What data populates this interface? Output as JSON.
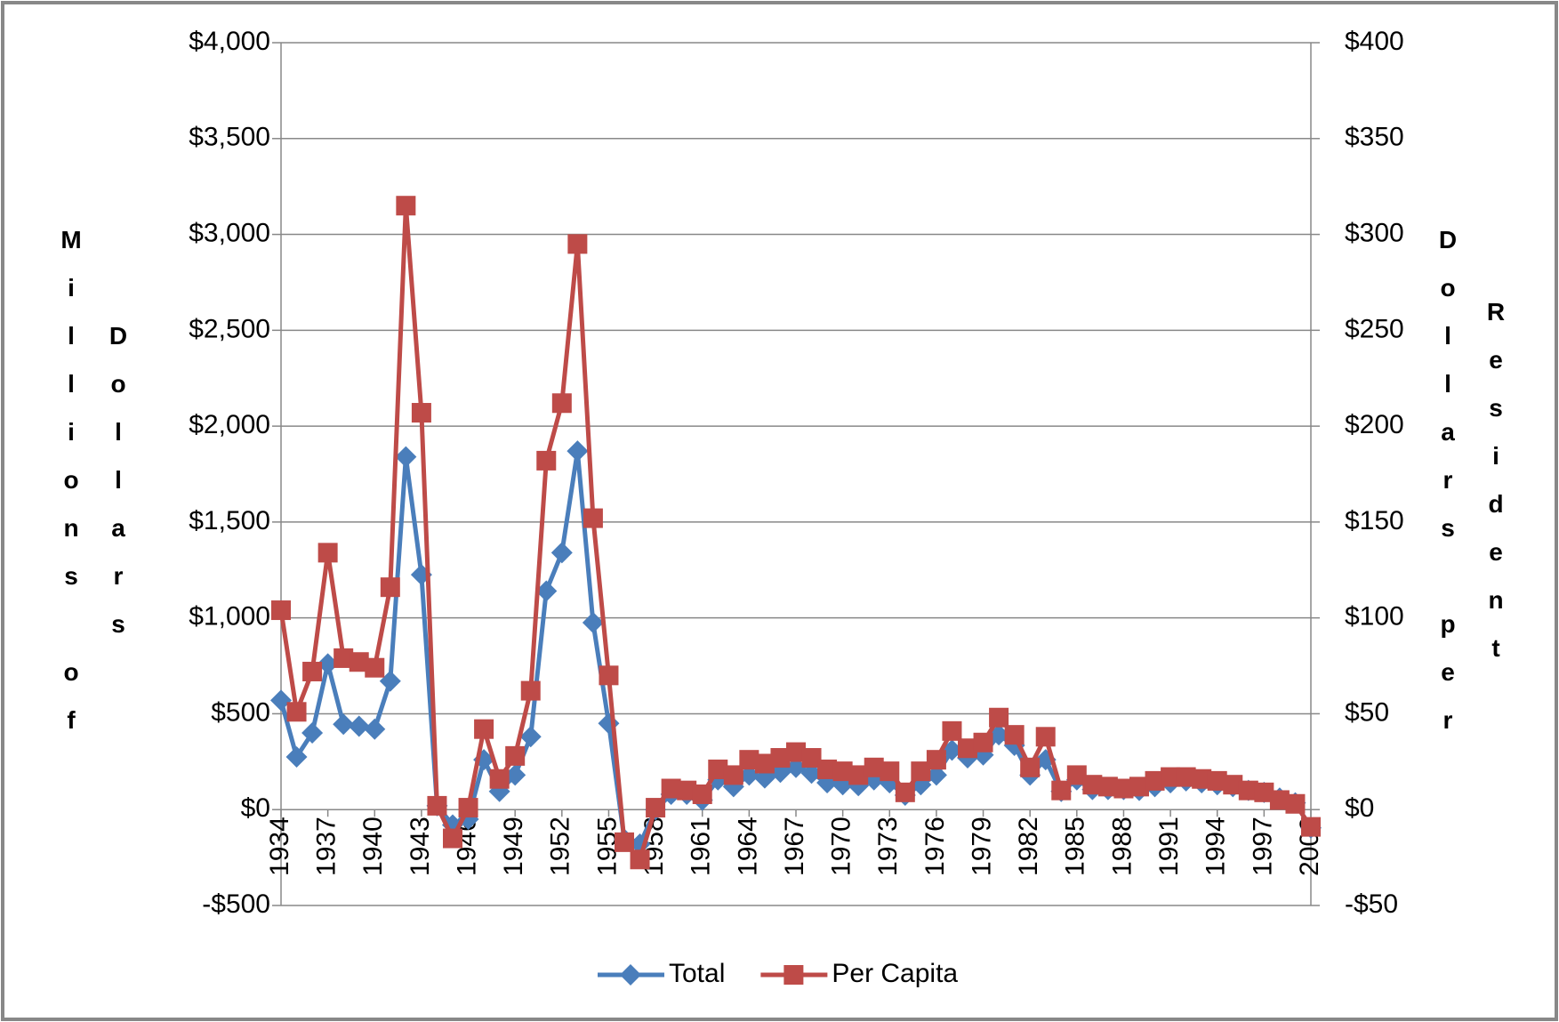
{
  "chart_data": {
    "type": "line",
    "ylabel": [
      "Millions of",
      "Dollars"
    ],
    "y2label": [
      "Dollars per",
      "Resident"
    ],
    "x": [
      1934,
      1935,
      1936,
      1937,
      1938,
      1939,
      1940,
      1941,
      1942,
      1943,
      1944,
      1945,
      1946,
      1947,
      1948,
      1949,
      1950,
      1951,
      1952,
      1953,
      1954,
      1955,
      1956,
      1957,
      1958,
      1959,
      1960,
      1961,
      1962,
      1963,
      1964,
      1965,
      1966,
      1967,
      1968,
      1969,
      1970,
      1971,
      1972,
      1973,
      1974,
      1975,
      1976,
      1977,
      1978,
      1979,
      1980,
      1981,
      1982,
      1983,
      1984,
      1985,
      1986,
      1987,
      1988,
      1989,
      1990,
      1991,
      1992,
      1993,
      1994,
      1995,
      1996,
      1997,
      1998,
      1999,
      2000
    ],
    "xlim": [
      1934,
      2000
    ],
    "xticks": [
      1934,
      1937,
      1940,
      1943,
      1946,
      1949,
      1952,
      1955,
      1958,
      1961,
      1964,
      1967,
      1970,
      1973,
      1976,
      1979,
      1982,
      1985,
      1988,
      1991,
      1994,
      1997,
      2000
    ],
    "ylim": [
      -500,
      4000
    ],
    "yticks": [
      {
        "value": -500,
        "label": "-$500"
      },
      {
        "value": 0,
        "label": "$0"
      },
      {
        "value": 500,
        "label": "$500"
      },
      {
        "value": 1000,
        "label": "$1,000"
      },
      {
        "value": 1500,
        "label": "$1,500"
      },
      {
        "value": 2000,
        "label": "$2,000"
      },
      {
        "value": 2500,
        "label": "$2,500"
      },
      {
        "value": 3000,
        "label": "$3,000"
      },
      {
        "value": 3500,
        "label": "$3,500"
      },
      {
        "value": 4000,
        "label": "$4,000"
      }
    ],
    "y2lim": [
      -50,
      400
    ],
    "y2ticks": [
      {
        "value": -50,
        "label": "-$50"
      },
      {
        "value": 0,
        "label": "$0"
      },
      {
        "value": 50,
        "label": "$50"
      },
      {
        "value": 100,
        "label": "$100"
      },
      {
        "value": 150,
        "label": "$150"
      },
      {
        "value": 200,
        "label": "$200"
      },
      {
        "value": 250,
        "label": "$250"
      },
      {
        "value": 300,
        "label": "$300"
      },
      {
        "value": 350,
        "label": "$350"
      },
      {
        "value": 400,
        "label": "$400"
      }
    ],
    "grid": true,
    "legend": "bottom",
    "series": [
      {
        "name": "Total",
        "color": "#4a7ebb",
        "marker": "diamond",
        "values": [
          570,
          275,
          400,
          760,
          445,
          435,
          420,
          670,
          1840,
          1225,
          20,
          -80,
          -50,
          260,
          95,
          180,
          380,
          1140,
          1340,
          1870,
          975,
          450,
          -155,
          -180,
          0,
          80,
          80,
          50,
          155,
          120,
          180,
          165,
          195,
          220,
          190,
          140,
          130,
          125,
          155,
          140,
          75,
          130,
          180,
          310,
          270,
          285,
          390,
          335,
          180,
          260,
          95,
          155,
          105,
          105,
          105,
          100,
          120,
          140,
          150,
          140,
          130,
          120,
          100,
          90,
          60,
          35,
          -95
        ]
      },
      {
        "name": "Per Capita",
        "color": "#be4b48",
        "marker": "square",
        "axis": "y2",
        "values": [
          104,
          51,
          72,
          134,
          79,
          77,
          74,
          116,
          315,
          207,
          2,
          -15,
          1,
          42,
          16,
          28,
          62,
          182,
          212,
          295,
          152,
          70,
          -17,
          -26,
          1,
          11,
          10,
          8,
          21,
          18,
          26,
          24,
          27,
          30,
          27,
          21,
          20,
          18,
          22,
          20,
          9,
          20,
          26,
          41,
          32,
          35,
          48,
          39,
          22,
          38,
          10,
          18,
          13,
          12,
          11,
          12,
          15,
          17,
          17,
          16,
          15,
          13,
          10,
          9,
          5,
          3,
          -9
        ]
      }
    ]
  }
}
